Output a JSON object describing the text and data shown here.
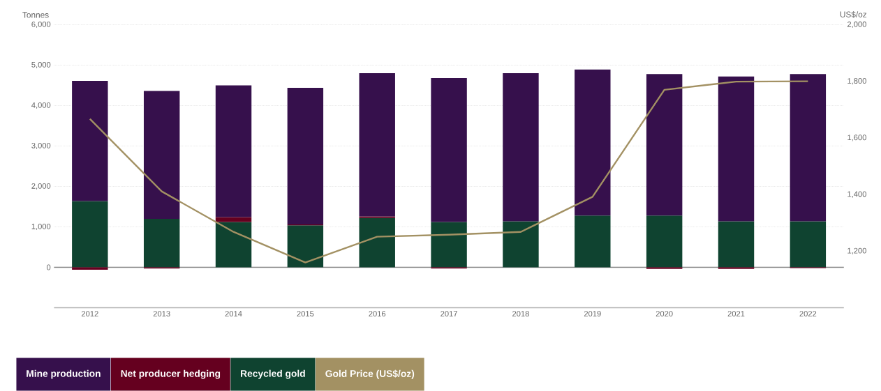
{
  "chart_data": {
    "type": "bar",
    "stacked": true,
    "ylabel": "Tonnes",
    "y2label": "US$/oz",
    "categories": [
      "2012",
      "2013",
      "2014",
      "2015",
      "2016",
      "2017",
      "2018",
      "2019",
      "2020",
      "2021",
      "2022"
    ],
    "series": [
      {
        "name": "Recycled gold",
        "color": "#0f4330",
        "values": [
          1640,
          1200,
          1120,
          1040,
          1220,
          1120,
          1140,
          1280,
          1280,
          1140,
          1140
        ]
      },
      {
        "name": "Net producer hedging",
        "color": "#65001f",
        "values": [
          -60,
          -30,
          120,
          20,
          40,
          -30,
          null,
          0,
          -40,
          -40,
          -20
        ]
      },
      {
        "name": "Mine production",
        "color": "#36104c",
        "values": [
          2970,
          3160,
          3260,
          3380,
          3540,
          3560,
          3660,
          3610,
          3500,
          3580,
          3640
        ]
      },
      {
        "name": "Gold Price (US$/oz)",
        "type": "line",
        "axis": "y2",
        "color": "#a39163",
        "values": [
          1667,
          1411,
          1268,
          1160,
          1251,
          1258,
          1268,
          1392,
          1770,
          1799,
          1800
        ]
      }
    ],
    "ylim": [
      -1000,
      6000
    ],
    "yticks": [
      {
        "value": 0,
        "label": "0"
      },
      {
        "value": 1000,
        "label": "1,000"
      },
      {
        "value": 2000,
        "label": "2,000"
      },
      {
        "value": 3000,
        "label": "3,000"
      },
      {
        "value": 4000,
        "label": "4,000"
      },
      {
        "value": 5000,
        "label": "5,000"
      },
      {
        "value": 6000,
        "label": "6,000"
      }
    ],
    "y2lim": [
      1000,
      2000
    ],
    "y2ticks": [
      {
        "value": 1200,
        "label": "1,200"
      },
      {
        "value": 1400,
        "label": "1,400"
      },
      {
        "value": 1600,
        "label": "1,600"
      },
      {
        "value": 1800,
        "label": "1,800"
      },
      {
        "value": 2000,
        "label": "2,000"
      }
    ],
    "grid": "y",
    "legend": "bottom"
  }
}
